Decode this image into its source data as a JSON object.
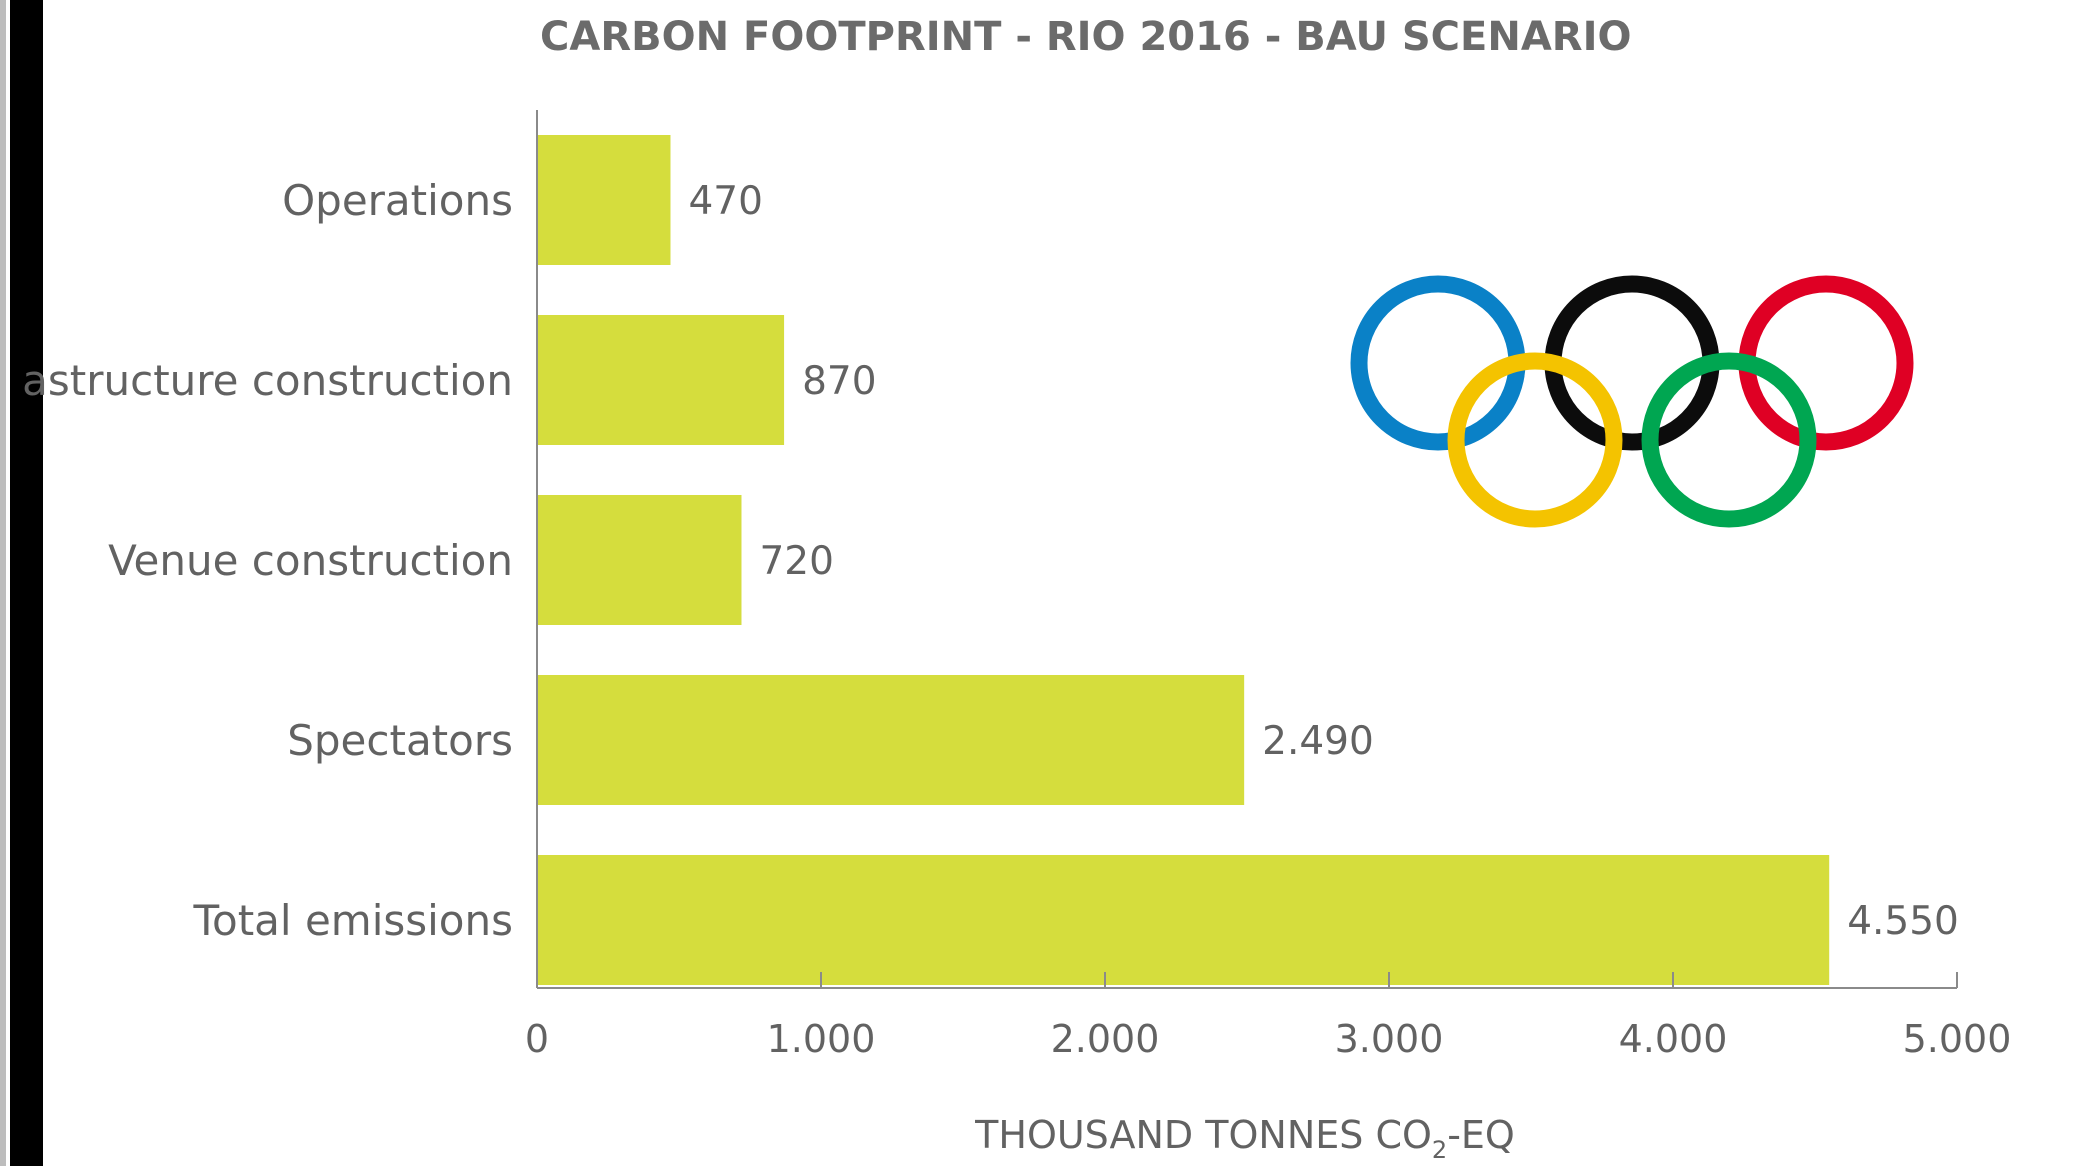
{
  "chart_data": {
    "type": "bar",
    "orientation": "horizontal",
    "title": "CARBON FOOTPRINT - RIO 2016 - BAU SCENARIO",
    "xlabel": "THOUSAND TONNES CO",
    "xlabel_subscript": "2",
    "xlabel_suffix": "-EQ",
    "categories": [
      "Operations",
      "astructure construction",
      "Venue construction",
      "Spectators",
      "Total emissions"
    ],
    "values": [
      470,
      870,
      720,
      2490,
      4550
    ],
    "value_labels": [
      "470",
      "870",
      "720",
      "2.490",
      "4.550"
    ],
    "xlim": [
      0,
      5000
    ],
    "xticks": [
      0,
      1000,
      2000,
      3000,
      4000,
      5000
    ],
    "xtick_labels": [
      "0",
      "1.000",
      "2.000",
      "3.000",
      "4.000",
      "5.000"
    ],
    "grid": false,
    "bar_color": "#d5dd3d"
  },
  "logo": {
    "name": "olympic-rings",
    "colors": {
      "blue": "#0a81c7",
      "yellow": "#f4c300",
      "black": "#0c0c0c",
      "green": "#00a651",
      "red": "#df0024"
    }
  }
}
